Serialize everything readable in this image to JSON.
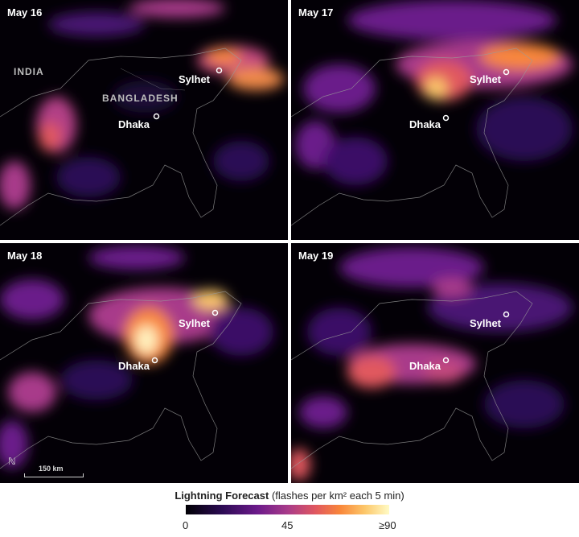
{
  "panels": [
    {
      "date": "May 16",
      "show_countries": true
    },
    {
      "date": "May 17",
      "show_countries": false
    },
    {
      "date": "May 18",
      "show_countries": false
    },
    {
      "date": "May 19",
      "show_countries": false
    }
  ],
  "cities": {
    "sylhet": "Sylhet",
    "dhaka": "Dhaka"
  },
  "countries": {
    "india": "INDIA",
    "bangladesh": "BANGLADESH"
  },
  "scale_label": "150 km",
  "north_symbol": "ℕ",
  "legend": {
    "title": "Lightning Forecast",
    "units": "(flashes per km² each 5 min)",
    "ticks": [
      "0",
      "45",
      "≥90"
    ],
    "colors": [
      "#000004",
      "#2c0b54",
      "#6b1a8a",
      "#a83b8a",
      "#e1585f",
      "#f9873a",
      "#fcc76a",
      "#fffbc5"
    ]
  }
}
